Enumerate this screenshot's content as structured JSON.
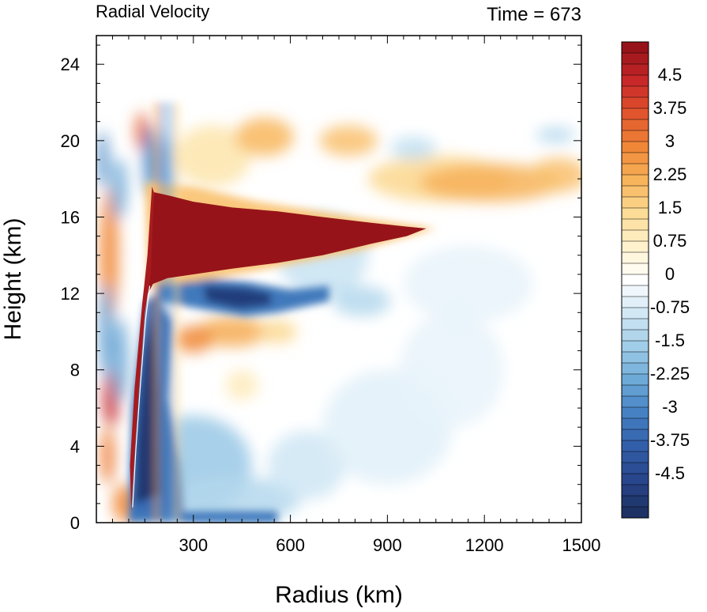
{
  "chart_data": {
    "type": "heatmap",
    "title_left": "Radial Velocity",
    "title_right": "Time = 673",
    "xlabel": "Radius (km)",
    "ylabel": "Height (km)",
    "xlim": [
      0,
      1500
    ],
    "ylim": [
      0,
      25.5
    ],
    "xticks": [
      300,
      600,
      900,
      1200,
      1500
    ],
    "yticks": [
      0,
      4,
      8,
      12,
      16,
      20,
      24
    ],
    "colorbar": {
      "min": -5.25,
      "max": 5.25,
      "step": 0.25,
      "labels": [
        "4.5",
        "3.75",
        "3",
        "2.25",
        "1.5",
        "0.75",
        "0",
        "-0.75",
        "-1.5",
        "-2.25",
        "-3",
        "-3.75",
        "-4.5"
      ],
      "label_values": [
        4.5,
        3.75,
        3,
        2.25,
        1.5,
        0.75,
        0,
        -0.75,
        -1.5,
        -2.25,
        -3,
        -3.75,
        -4.5
      ]
    },
    "features": [
      {
        "name": "upper outflow jet",
        "r": [
          170,
          1020
        ],
        "z": [
          12.3,
          17.3
        ],
        "v": 5.5
      },
      {
        "name": "inflow below outflow",
        "r": [
          180,
          720
        ],
        "z": [
          10.8,
          12.6
        ],
        "v": -4.5
      },
      {
        "name": "eyewall updraft core",
        "r": [
          95,
          270
        ],
        "z": [
          0,
          12
        ],
        "v": -5.0
      },
      {
        "name": "mid-level outflow",
        "r": [
          230,
          620
        ],
        "z": [
          9,
          11
        ],
        "v": 2.5
      },
      {
        "name": "upper outflow band",
        "r": [
          900,
          1500
        ],
        "z": [
          17,
          19
        ],
        "v": 2.5
      },
      {
        "name": "upper outflow band 2",
        "r": [
          380,
          850
        ],
        "z": [
          19,
          21
        ],
        "v": 2.0
      },
      {
        "name": "boundary-layer inflow",
        "r": [
          100,
          700
        ],
        "z": [
          0,
          4
        ],
        "v": -2.0
      }
    ]
  }
}
